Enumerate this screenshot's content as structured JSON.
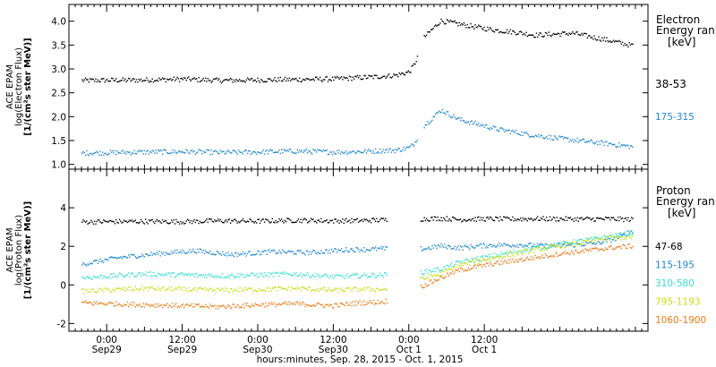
{
  "chart_data": [
    {
      "type": "scatter",
      "panel": "electron",
      "ylabel_lines": [
        "ACE EPAM",
        "log(Electron Flux)",
        "[1/(cm²s ster MeV)]"
      ],
      "ylim": [
        0.9,
        4.35
      ],
      "yticks": [
        1.0,
        1.5,
        2.0,
        2.5,
        3.0,
        3.5,
        4.0
      ],
      "ytick_labels": [
        "1.0",
        "1.5",
        "2.0",
        "2.5",
        "3.0",
        "3.5",
        "4.0"
      ],
      "legend_title": [
        "Electron",
        "Energy ran",
        "[keV]"
      ],
      "series": [
        {
          "name": "38-53",
          "color": "#000000",
          "x": [
            -4,
            6,
            12,
            18,
            24,
            30,
            36,
            40,
            42,
            44,
            46,
            48,
            48.8,
            49.4,
            50.2,
            53,
            56,
            59,
            62,
            65,
            68,
            71,
            74,
            77,
            80,
            83.5
          ],
          "y": [
            2.77,
            2.78,
            2.8,
            2.77,
            2.78,
            2.79,
            2.8,
            2.83,
            2.84,
            2.86,
            2.88,
            2.95,
            3.1,
            3.3,
            3.65,
            4.02,
            3.95,
            3.88,
            3.82,
            3.78,
            3.72,
            3.74,
            3.76,
            3.68,
            3.6,
            3.5
          ]
        },
        {
          "name": "175-315",
          "color": "#1f87d6",
          "x": [
            -4,
            6,
            12,
            18,
            24,
            30,
            36,
            40,
            42,
            44,
            46,
            48,
            48.8,
            49.4,
            50.2,
            53,
            56,
            59,
            62,
            65,
            68,
            71,
            74,
            77,
            80,
            83.5
          ],
          "y": [
            1.25,
            1.27,
            1.28,
            1.26,
            1.27,
            1.29,
            1.27,
            1.28,
            1.29,
            1.3,
            1.31,
            1.36,
            1.45,
            1.6,
            1.8,
            2.15,
            1.95,
            1.85,
            1.75,
            1.68,
            1.62,
            1.57,
            1.52,
            1.48,
            1.44,
            1.38
          ]
        }
      ]
    },
    {
      "type": "scatter",
      "panel": "proton",
      "ylabel_lines": [
        "ACE EPAM",
        "log(Proton Flux)",
        "[1/(cm²s ster MeV)]"
      ],
      "ylim": [
        -2.4,
        6
      ],
      "yticks": [
        -2,
        0,
        2,
        4
      ],
      "ytick_labels": [
        "-2",
        "0",
        "2",
        "4"
      ],
      "legend_title": [
        "Proton",
        "Energy ran",
        "[keV]"
      ],
      "series": [
        {
          "name": "47-68",
          "color": "#000000",
          "x": [
            -4,
            6,
            12,
            18,
            24,
            30,
            36,
            40,
            44,
            50.3,
            53,
            56,
            60,
            64,
            68,
            72,
            76,
            80,
            83.5
          ],
          "y": [
            3.3,
            3.32,
            3.31,
            3.35,
            3.33,
            3.38,
            3.35,
            3.36,
            3.4,
            3.45,
            3.48,
            3.42,
            3.45,
            3.44,
            3.46,
            3.45,
            3.44,
            3.45,
            3.42
          ],
          "gap_after_x": 50.3
        },
        {
          "name": "115-195",
          "color": "#1f87d6",
          "x": [
            -4,
            2,
            8,
            14,
            20,
            26,
            32,
            38,
            44,
            50.3,
            53,
            56,
            59,
            62,
            66,
            70,
            74,
            78,
            81,
            83.5
          ],
          "y": [
            1.1,
            1.45,
            1.65,
            1.8,
            1.6,
            1.75,
            1.7,
            1.85,
            1.9,
            1.9,
            2.05,
            1.95,
            2.05,
            2.1,
            2.1,
            2.05,
            2.1,
            2.2,
            2.45,
            2.85
          ],
          "gap_after_x": 50.3
        },
        {
          "name": "310-580",
          "color": "#34dfd2",
          "x": [
            -4,
            6,
            12,
            18,
            24,
            30,
            36,
            40,
            44,
            50.3,
            53,
            56,
            60,
            64,
            68,
            72,
            76,
            80,
            83.5
          ],
          "y": [
            0.4,
            0.6,
            0.55,
            0.5,
            0.55,
            0.6,
            0.45,
            0.5,
            0.55,
            0.7,
            0.85,
            1.2,
            1.45,
            1.7,
            1.95,
            2.15,
            2.35,
            2.55,
            2.75
          ],
          "gap_after_x": 50.3
        },
        {
          "name": "795-1193",
          "color": "#c4e019",
          "x": [
            -4,
            6,
            12,
            18,
            24,
            30,
            36,
            40,
            44,
            50.3,
            53,
            56,
            60,
            64,
            68,
            72,
            76,
            80,
            83.5
          ],
          "y": [
            -0.3,
            -0.15,
            -0.2,
            -0.25,
            -0.2,
            -0.15,
            -0.25,
            -0.2,
            -0.2,
            0.35,
            0.6,
            1.05,
            1.35,
            1.6,
            1.85,
            2.05,
            2.25,
            2.45,
            2.5
          ],
          "gap_after_x": 50.3
        },
        {
          "name": "1060-1900",
          "color": "#ee7a17",
          "x": [
            -4,
            6,
            12,
            18,
            24,
            30,
            36,
            40,
            44,
            50.3,
            53,
            56,
            60,
            64,
            68,
            72,
            76,
            80,
            83.5
          ],
          "y": [
            -0.9,
            -1.0,
            -1.05,
            -1.1,
            -1.0,
            -0.95,
            -1.05,
            -0.9,
            -0.85,
            0.0,
            0.4,
            0.8,
            1.05,
            1.25,
            1.45,
            1.65,
            1.8,
            1.95,
            2.05
          ],
          "gap_after_x": 50.3
        }
      ]
    }
  ],
  "xaxis": {
    "label": "hours:minutes, Sep. 28, 2015 - Oct.  1, 2015",
    "range_hours": [
      -6,
      86
    ],
    "major_ticks_hours": [
      0,
      12,
      24,
      36,
      48,
      60
    ],
    "time_labels": [
      "0:00",
      "12:00",
      "0:00",
      "12:00",
      "0:00",
      "12:00"
    ],
    "date_labels": [
      "Sep29",
      "Sep29",
      "Sep30",
      "Sep30",
      "Oct 1",
      "Oct 1"
    ],
    "minor_tick_step_hours": 1
  },
  "colors": {
    "frame": "#000000",
    "background": "#ffffff"
  }
}
